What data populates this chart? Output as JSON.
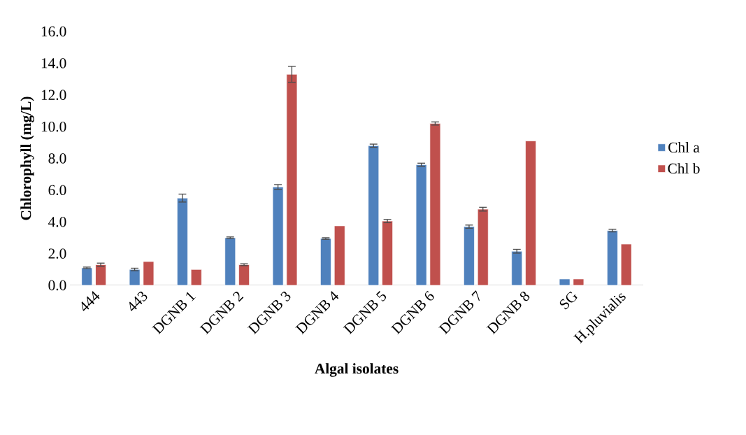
{
  "chart_data": {
    "type": "bar",
    "xlabel": "Algal isolates",
    "ylabel": "Chlorophyll (mg/L)",
    "categories": [
      "444",
      "443",
      "DGNB 1",
      "DGNB 2",
      "DGNB 3",
      "DGNB 4",
      "DGNB 5",
      "DGNB 6",
      "DGNB 7",
      "DGNB 8",
      "SG",
      "H.pluvialis"
    ],
    "series": [
      {
        "name": "Chl a",
        "color": "#4f81bd",
        "values": [
          1.1,
          1.0,
          5.5,
          3.0,
          6.2,
          2.95,
          8.8,
          7.6,
          3.7,
          2.15,
          0.4,
          3.45
        ],
        "errors": [
          0.05,
          0.08,
          0.25,
          0.05,
          0.15,
          0.05,
          0.1,
          0.1,
          0.1,
          0.12,
          null,
          0.08
        ]
      },
      {
        "name": "Chl b",
        "color": "#c0504d",
        "values": [
          1.3,
          1.5,
          1.0,
          1.3,
          13.3,
          3.75,
          4.05,
          10.2,
          4.8,
          9.1,
          0.4,
          2.6
        ],
        "errors": [
          0.1,
          null,
          null,
          0.06,
          0.5,
          null,
          0.1,
          0.1,
          0.12,
          null,
          null,
          null
        ]
      }
    ],
    "ylim": [
      0,
      16
    ],
    "yticks": [
      {
        "value": 0,
        "label": "0.0"
      },
      {
        "value": 2,
        "label": "2.0"
      },
      {
        "value": 4,
        "label": "4.0"
      },
      {
        "value": 6,
        "label": "6.0"
      },
      {
        "value": 8,
        "label": "8.0"
      },
      {
        "value": 10,
        "label": "10.0"
      },
      {
        "value": 12,
        "label": "12.0"
      },
      {
        "value": 14,
        "label": "14.0"
      },
      {
        "value": 16,
        "label": "16.0"
      }
    ],
    "legend": "right",
    "grid": false
  }
}
